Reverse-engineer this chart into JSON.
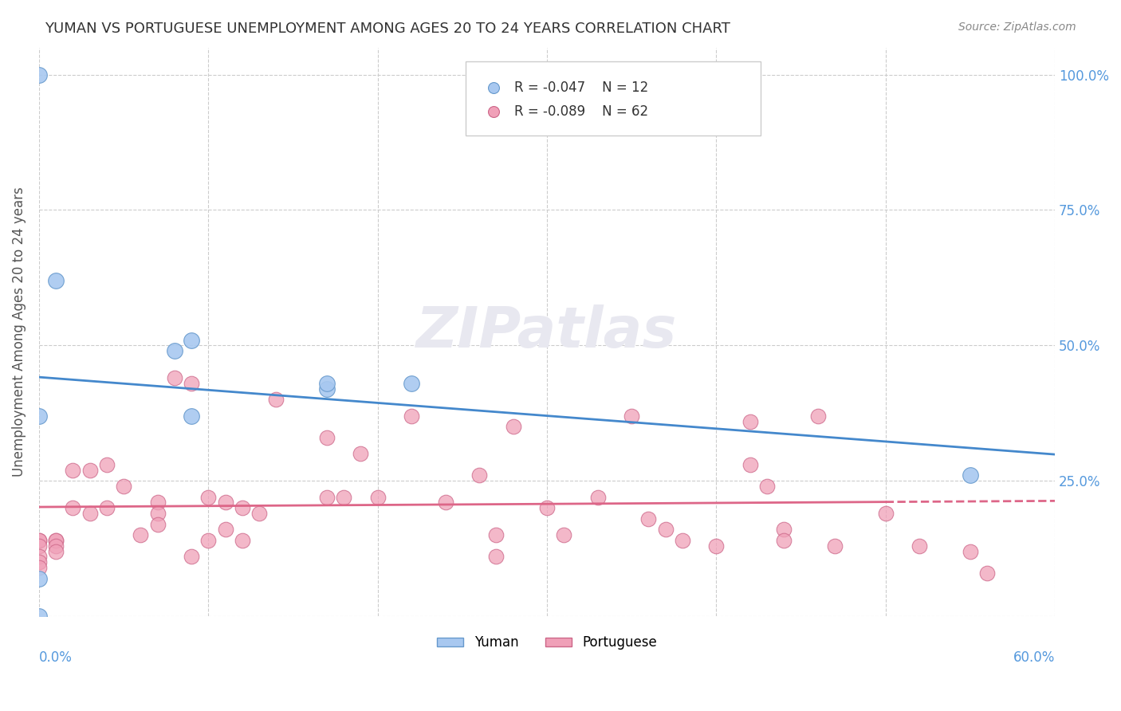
{
  "title": "YUMAN VS PORTUGUESE UNEMPLOYMENT AMONG AGES 20 TO 24 YEARS CORRELATION CHART",
  "source": "Source: ZipAtlas.com",
  "ylabel": "Unemployment Among Ages 20 to 24 years",
  "xlim": [
    0.0,
    0.6
  ],
  "ylim": [
    0.0,
    1.05
  ],
  "yticks": [
    0.0,
    0.25,
    0.5,
    0.75,
    1.0
  ],
  "ytick_labels": [
    "",
    "25.0%",
    "50.0%",
    "75.0%",
    "100.0%"
  ],
  "yuman_color": "#a8c8f0",
  "yuman_color_dark": "#6699cc",
  "portuguese_color": "#f0a0b8",
  "portuguese_color_dark": "#cc6688",
  "trend_yuman_color": "#4488cc",
  "trend_portuguese_color": "#dd6688",
  "watermark_color": "#e8e8f0",
  "background_color": "#ffffff",
  "yuman_x": [
    0.0,
    0.01,
    0.08,
    0.09,
    0.09,
    0.17,
    0.17,
    0.0,
    0.0,
    0.0,
    0.22,
    0.55
  ],
  "yuman_y": [
    1.0,
    0.62,
    0.49,
    0.51,
    0.37,
    0.42,
    0.43,
    0.07,
    0.37,
    0.0,
    0.43,
    0.26
  ],
  "portuguese_x": [
    0.0,
    0.0,
    0.0,
    0.0,
    0.0,
    0.0,
    0.01,
    0.01,
    0.01,
    0.01,
    0.02,
    0.02,
    0.03,
    0.03,
    0.04,
    0.04,
    0.05,
    0.06,
    0.07,
    0.07,
    0.07,
    0.08,
    0.09,
    0.09,
    0.1,
    0.1,
    0.11,
    0.11,
    0.12,
    0.12,
    0.13,
    0.14,
    0.17,
    0.17,
    0.18,
    0.19,
    0.2,
    0.22,
    0.24,
    0.26,
    0.27,
    0.27,
    0.28,
    0.3,
    0.31,
    0.33,
    0.35,
    0.36,
    0.37,
    0.38,
    0.4,
    0.42,
    0.42,
    0.43,
    0.44,
    0.44,
    0.46,
    0.47,
    0.5,
    0.52,
    0.55,
    0.56
  ],
  "portuguese_y": [
    0.14,
    0.14,
    0.13,
    0.11,
    0.1,
    0.09,
    0.14,
    0.14,
    0.13,
    0.12,
    0.27,
    0.2,
    0.27,
    0.19,
    0.28,
    0.2,
    0.24,
    0.15,
    0.21,
    0.19,
    0.17,
    0.44,
    0.43,
    0.11,
    0.22,
    0.14,
    0.21,
    0.16,
    0.2,
    0.14,
    0.19,
    0.4,
    0.33,
    0.22,
    0.22,
    0.3,
    0.22,
    0.37,
    0.21,
    0.26,
    0.15,
    0.11,
    0.35,
    0.2,
    0.15,
    0.22,
    0.37,
    0.18,
    0.16,
    0.14,
    0.13,
    0.36,
    0.28,
    0.24,
    0.16,
    0.14,
    0.37,
    0.13,
    0.19,
    0.13,
    0.12,
    0.08
  ]
}
